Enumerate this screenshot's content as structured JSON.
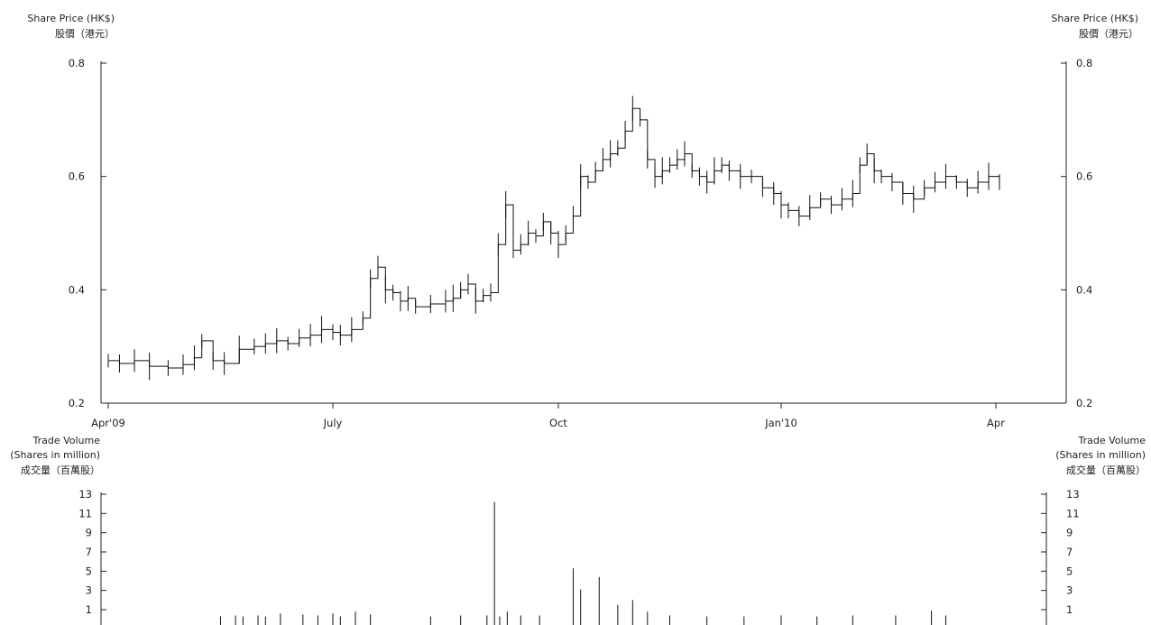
{
  "chart_data": [
    {
      "type": "line",
      "chart_style": "high-low-close",
      "ylabel_left": [
        "Share Price (HK$)",
        "股價（港元）"
      ],
      "ylabel_right": [
        "Share Price (HK$)",
        "股價（港元）"
      ],
      "ylim": [
        0.2,
        0.8
      ],
      "yticks": [
        "0.2",
        "0.4",
        "0.6",
        "0.8"
      ],
      "xticks": [
        "Apr'09",
        "July",
        "Oct",
        "Jan'10",
        "Apr"
      ],
      "x_range_months": [
        0,
        12.3
      ],
      "series": [
        {
          "points": [
            [
              0.0,
              0.275
            ],
            [
              0.15,
              0.27
            ],
            [
              0.35,
              0.275
            ],
            [
              0.55,
              0.265
            ],
            [
              0.8,
              0.262
            ],
            [
              1.0,
              0.268
            ],
            [
              1.15,
              0.28
            ],
            [
              1.25,
              0.31
            ],
            [
              1.4,
              0.275
            ],
            [
              1.55,
              0.27
            ],
            [
              1.75,
              0.295
            ],
            [
              1.95,
              0.3
            ],
            [
              2.1,
              0.305
            ],
            [
              2.25,
              0.31
            ],
            [
              2.4,
              0.305
            ],
            [
              2.55,
              0.315
            ],
            [
              2.7,
              0.32
            ],
            [
              2.85,
              0.33
            ],
            [
              3.0,
              0.325
            ],
            [
              3.1,
              0.32
            ],
            [
              3.25,
              0.33
            ],
            [
              3.4,
              0.35
            ],
            [
              3.5,
              0.42
            ],
            [
              3.6,
              0.44
            ],
            [
              3.7,
              0.4
            ],
            [
              3.8,
              0.395
            ],
            [
              3.9,
              0.38
            ],
            [
              4.0,
              0.385
            ],
            [
              4.1,
              0.37
            ],
            [
              4.3,
              0.375
            ],
            [
              4.5,
              0.38
            ],
            [
              4.6,
              0.385
            ],
            [
              4.7,
              0.4
            ],
            [
              4.8,
              0.41
            ],
            [
              4.9,
              0.38
            ],
            [
              5.0,
              0.39
            ],
            [
              5.1,
              0.395
            ],
            [
              5.2,
              0.48
            ],
            [
              5.3,
              0.55
            ],
            [
              5.4,
              0.47
            ],
            [
              5.5,
              0.48
            ],
            [
              5.6,
              0.5
            ],
            [
              5.7,
              0.495
            ],
            [
              5.8,
              0.52
            ],
            [
              5.9,
              0.5
            ],
            [
              6.0,
              0.48
            ],
            [
              6.1,
              0.5
            ],
            [
              6.2,
              0.53
            ],
            [
              6.3,
              0.6
            ],
            [
              6.4,
              0.59
            ],
            [
              6.5,
              0.61
            ],
            [
              6.6,
              0.63
            ],
            [
              6.7,
              0.64
            ],
            [
              6.8,
              0.65
            ],
            [
              6.9,
              0.68
            ],
            [
              7.0,
              0.72
            ],
            [
              7.1,
              0.7
            ],
            [
              7.2,
              0.63
            ],
            [
              7.3,
              0.6
            ],
            [
              7.4,
              0.61
            ],
            [
              7.5,
              0.62
            ],
            [
              7.6,
              0.63
            ],
            [
              7.7,
              0.64
            ],
            [
              7.8,
              0.61
            ],
            [
              7.9,
              0.6
            ],
            [
              8.0,
              0.59
            ],
            [
              8.1,
              0.61
            ],
            [
              8.2,
              0.62
            ],
            [
              8.3,
              0.61
            ],
            [
              8.45,
              0.6
            ],
            [
              8.6,
              0.6
            ],
            [
              8.75,
              0.58
            ],
            [
              8.9,
              0.57
            ],
            [
              9.0,
              0.55
            ],
            [
              9.1,
              0.54
            ],
            [
              9.25,
              0.53
            ],
            [
              9.4,
              0.545
            ],
            [
              9.55,
              0.56
            ],
            [
              9.7,
              0.55
            ],
            [
              9.85,
              0.56
            ],
            [
              10.0,
              0.57
            ],
            [
              10.1,
              0.62
            ],
            [
              10.2,
              0.64
            ],
            [
              10.3,
              0.61
            ],
            [
              10.4,
              0.6
            ],
            [
              10.55,
              0.59
            ],
            [
              10.7,
              0.57
            ],
            [
              10.85,
              0.56
            ],
            [
              11.0,
              0.58
            ],
            [
              11.15,
              0.59
            ],
            [
              11.3,
              0.6
            ],
            [
              11.45,
              0.59
            ],
            [
              11.6,
              0.58
            ],
            [
              11.75,
              0.59
            ],
            [
              11.9,
              0.6
            ],
            [
              12.05,
              0.59
            ]
          ]
        }
      ]
    },
    {
      "type": "bar",
      "ylabel_left": [
        "Trade Volume",
        "(Shares in million)",
        "成交量（百萬股）"
      ],
      "ylabel_right": [
        "Trade Volume",
        "(Shares in million)",
        "成交量（百萬股）"
      ],
      "ylim": [
        0,
        13
      ],
      "yticks": [
        "1",
        "3",
        "5",
        "7",
        "9",
        "11",
        "13"
      ],
      "x_range_months": [
        0,
        12.3
      ],
      "series": [
        {
          "points": [
            [
              1.5,
              0.3
            ],
            [
              1.7,
              0.4
            ],
            [
              1.8,
              0.3
            ],
            [
              2.0,
              0.4
            ],
            [
              2.1,
              0.3
            ],
            [
              2.3,
              0.6
            ],
            [
              2.6,
              0.5
            ],
            [
              2.8,
              0.4
            ],
            [
              3.0,
              0.6
            ],
            [
              3.1,
              0.3
            ],
            [
              3.3,
              0.8
            ],
            [
              3.5,
              0.5
            ],
            [
              4.3,
              0.3
            ],
            [
              4.7,
              0.4
            ],
            [
              5.05,
              0.4
            ],
            [
              5.15,
              12.2
            ],
            [
              5.22,
              0.3
            ],
            [
              5.32,
              0.8
            ],
            [
              5.5,
              0.4
            ],
            [
              5.75,
              0.4
            ],
            [
              6.2,
              5.3
            ],
            [
              6.3,
              3.1
            ],
            [
              6.55,
              4.4
            ],
            [
              6.8,
              1.5
            ],
            [
              7.0,
              2.0
            ],
            [
              7.2,
              0.8
            ],
            [
              7.5,
              0.4
            ],
            [
              8.0,
              0.3
            ],
            [
              8.5,
              0.3
            ],
            [
              9.0,
              0.4
            ],
            [
              9.5,
              0.3
            ],
            [
              10.0,
              0.4
            ],
            [
              10.6,
              0.4
            ],
            [
              11.1,
              0.9
            ],
            [
              11.3,
              0.4
            ]
          ]
        }
      ]
    }
  ]
}
